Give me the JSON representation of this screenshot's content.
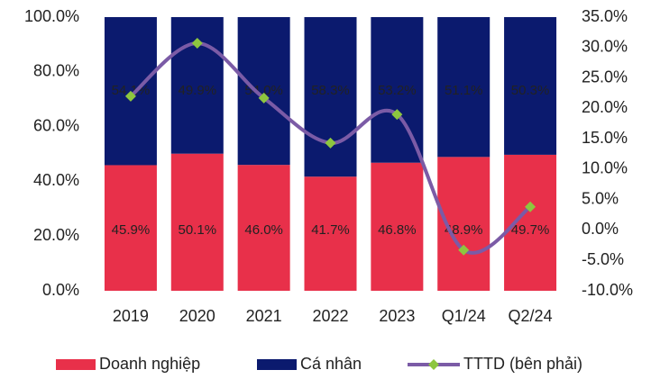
{
  "chart_data": {
    "type": "bar",
    "stacked": true,
    "categories": [
      "2019",
      "2020",
      "2021",
      "2022",
      "2023",
      "Q1/24",
      "Q2/24"
    ],
    "series": [
      {
        "name": "Doanh nghiệp",
        "color": "#e8304a",
        "values": [
          45.9,
          50.1,
          46.0,
          41.7,
          46.8,
          48.9,
          49.7
        ],
        "value_labels": [
          "45.9%",
          "50.1%",
          "46.0%",
          "41.7%",
          "46.8%",
          "48.9%",
          "49.7%"
        ]
      },
      {
        "name": "Cá nhân",
        "color": "#0b1a6e",
        "values": [
          54.1,
          49.9,
          54.0,
          58.3,
          53.2,
          51.1,
          50.3
        ],
        "value_labels": [
          "54.1%",
          "49.9%",
          "54.0%",
          "58.3%",
          "53.2%",
          "51.1%",
          "50.3%"
        ]
      },
      {
        "name": "TTTD (bên phải)",
        "type": "line",
        "axis": "y2",
        "color": "#7b5ba6",
        "marker_color": "#8dc63f",
        "values": [
          22.0,
          30.7,
          21.7,
          14.3,
          19.0,
          -3.3,
          3.8
        ]
      }
    ],
    "ylim": [
      0,
      100
    ],
    "yticks": [
      {
        "value": 0,
        "label": "0.0%"
      },
      {
        "value": 20,
        "label": "20.0%"
      },
      {
        "value": 40,
        "label": "40.0%"
      },
      {
        "value": 60,
        "label": "60.0%"
      },
      {
        "value": 80,
        "label": "80.0%"
      },
      {
        "value": 100,
        "label": "100.0%"
      }
    ],
    "y2lim": [
      -10,
      35
    ],
    "y2ticks": [
      {
        "value": -10,
        "label": "-10.0%"
      },
      {
        "value": -5,
        "label": "-5.0%"
      },
      {
        "value": 0,
        "label": "0.0%"
      },
      {
        "value": 5,
        "label": "5.0%"
      },
      {
        "value": 10,
        "label": "10.0%"
      },
      {
        "value": 15,
        "label": "15.0%"
      },
      {
        "value": 20,
        "label": "20.0%"
      },
      {
        "value": 25,
        "label": "25.0%"
      },
      {
        "value": 30,
        "label": "30.0%"
      },
      {
        "value": 35,
        "label": "35.0%"
      }
    ]
  }
}
